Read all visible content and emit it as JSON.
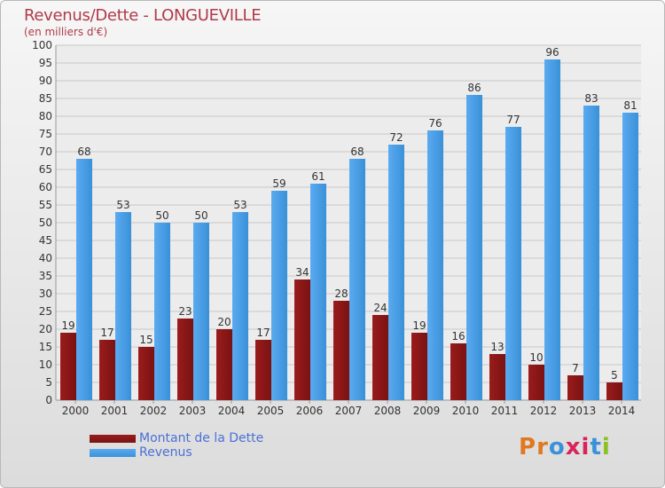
{
  "title": "Revenus/Dette - LONGUEVILLE",
  "subtitle": "(en milliers d'€)",
  "logo": "Proxiti",
  "colors": {
    "dette": "#7a1212",
    "revenus": "#3a91d8",
    "text": "#b03a4a",
    "legend_text": "#4a6fd8"
  },
  "chart_data": {
    "type": "bar",
    "categories": [
      "2000",
      "2001",
      "2002",
      "2003",
      "2004",
      "2005",
      "2006",
      "2007",
      "2008",
      "2009",
      "2010",
      "2011",
      "2012",
      "2013",
      "2014"
    ],
    "series": [
      {
        "name": "Montant de la Dette",
        "values": [
          19,
          17,
          15,
          23,
          20,
          17,
          34,
          28,
          24,
          19,
          16,
          13,
          10,
          7,
          5
        ]
      },
      {
        "name": "Revenus",
        "values": [
          68,
          53,
          50,
          50,
          53,
          59,
          61,
          68,
          72,
          76,
          86,
          77,
          96,
          83,
          81
        ]
      }
    ],
    "ylim": [
      0,
      100
    ],
    "yticks": [
      0,
      5,
      10,
      15,
      20,
      25,
      30,
      35,
      40,
      45,
      50,
      55,
      60,
      65,
      70,
      75,
      80,
      85,
      90,
      95,
      100
    ],
    "grid": true,
    "legend_position": "bottom-left"
  }
}
